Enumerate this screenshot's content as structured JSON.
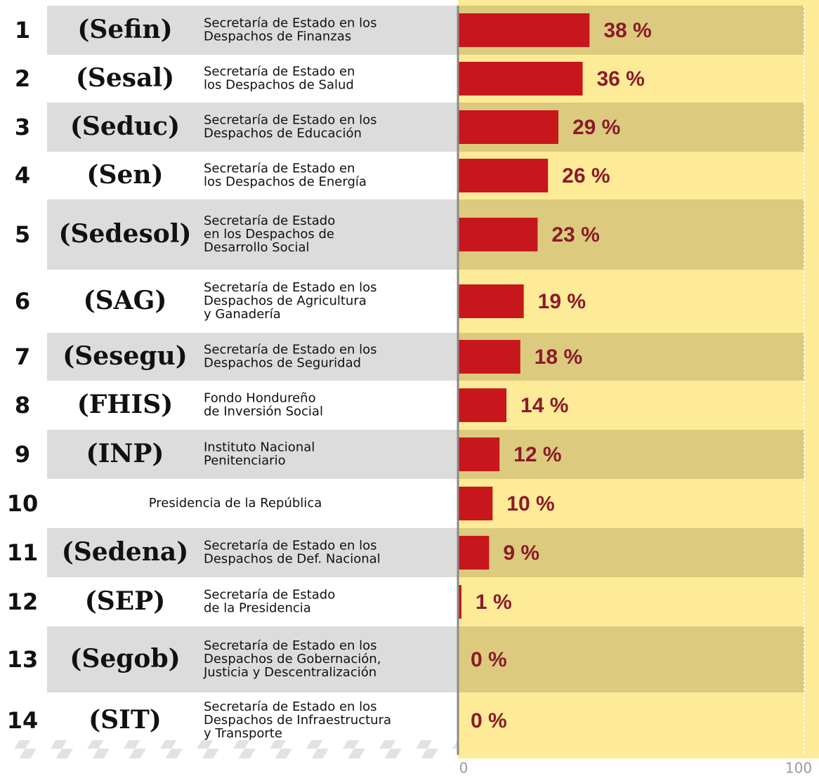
{
  "chart_data": {
    "type": "bar",
    "orientation": "horizontal",
    "rows": [
      {
        "rank": 1,
        "acronym": "(Sefin)",
        "name": [
          "Secretaría de Estado en los",
          "Despachos de Finanzas"
        ]
      },
      {
        "rank": 2,
        "acronym": "(Sesal)",
        "name": [
          "Secretaría de Estado en",
          "los Despachos de Salud"
        ]
      },
      {
        "rank": 3,
        "acronym": "(Seduc)",
        "name": [
          "Secretaría de Estado en los",
          "Despachos de Educación"
        ]
      },
      {
        "rank": 4,
        "acronym": "(Sen)",
        "name": [
          "Secretaría de Estado en",
          "los Despachos de Energía"
        ]
      },
      {
        "rank": 5,
        "acronym": "(Sedesol)",
        "name": [
          "Secretaría de Estado",
          "en los Despachos de",
          "Desarrollo Social"
        ]
      },
      {
        "rank": 6,
        "acronym": "(SAG)",
        "name": [
          "Secretaría de Estado en los",
          "Despachos de Agricultura",
          "y Ganadería"
        ]
      },
      {
        "rank": 7,
        "acronym": "(Sesegu)",
        "name": [
          "Secretaría de Estado en los",
          "Despachos de Seguridad"
        ]
      },
      {
        "rank": 8,
        "acronym": "(FHIS)",
        "name": [
          "Fondo Hondureño",
          "de Inversión Social"
        ]
      },
      {
        "rank": 9,
        "acronym": "(INP)",
        "name": [
          "Instituto Nacional",
          "Penitenciario"
        ]
      },
      {
        "rank": 10,
        "name": [
          "Presidencia de la República"
        ]
      },
      {
        "rank": 11,
        "acronym": "(Sedena)",
        "name": [
          "Secretaría de Estado en los",
          "Despachos de Def. Nacional"
        ]
      },
      {
        "rank": 12,
        "acronym": "(SEP)",
        "name": [
          "Secretaría de Estado",
          "de la Presidencia"
        ]
      },
      {
        "rank": 13,
        "acronym": "(Segob)",
        "name": [
          "Secretaría de Estado en los",
          "Despachos de Gobernación,",
          "Justicia y Descentralización"
        ]
      },
      {
        "rank": 14,
        "acronym": "(SIT)",
        "name": [
          "Secretaría de Estado en los",
          "Despachos de Infraestructura",
          "y Transporte"
        ]
      }
    ],
    "values": [
      38,
      36,
      29,
      26,
      23,
      19,
      18,
      14,
      12,
      10,
      9,
      1,
      0,
      0
    ],
    "value_labels": [
      "38 %",
      "36 %",
      "29 %",
      "26 %",
      "23 %",
      "19 %",
      "18 %",
      "14 %",
      "12 %",
      "10 %",
      "9 %",
      "1 %",
      "0 %",
      "0 %"
    ],
    "color": "#c8161d",
    "xlim": [
      0,
      100
    ],
    "xticks": [
      0,
      100
    ]
  }
}
